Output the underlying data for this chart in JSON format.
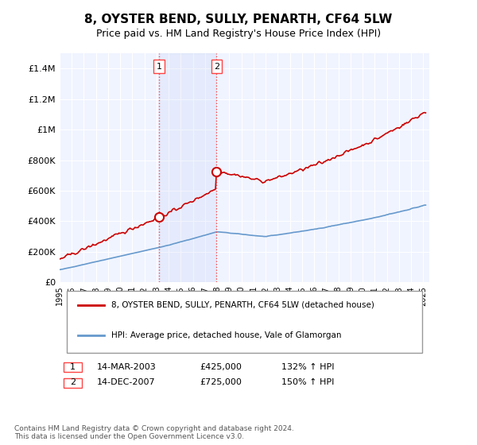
{
  "title": "8, OYSTER BEND, SULLY, PENARTH, CF64 5LW",
  "subtitle": "Price paid vs. HM Land Registry's House Price Index (HPI)",
  "title_fontsize": 11,
  "subtitle_fontsize": 9,
  "ylabel": "",
  "xlabel": "",
  "ylim": [
    0,
    1500000
  ],
  "xlim_start": 1995.0,
  "xlim_end": 2025.5,
  "background_color": "#ffffff",
  "plot_bg_color": "#f0f4ff",
  "grid_color": "#ffffff",
  "sale1_year": 2003.2,
  "sale1_price": 425000,
  "sale2_year": 2007.95,
  "sale2_price": 725000,
  "sale1_label": "1",
  "sale2_label": "2",
  "vline_color": "#ff4444",
  "vline_style": ":",
  "red_line_color": "#cc0000",
  "blue_line_color": "#6699cc",
  "legend_label_red": "8, OYSTER BEND, SULLY, PENARTH, CF64 5LW (detached house)",
  "legend_label_blue": "HPI: Average price, detached house, Vale of Glamorgan",
  "table_row1": [
    "1",
    "14-MAR-2003",
    "£425,000",
    "132% ↑ HPI"
  ],
  "table_row2": [
    "2",
    "14-DEC-2007",
    "£725,000",
    "150% ↑ HPI"
  ],
  "footer": "Contains HM Land Registry data © Crown copyright and database right 2024.\nThis data is licensed under the Open Government Licence v3.0.",
  "yticks": [
    0,
    200000,
    400000,
    600000,
    800000,
    1000000,
    1200000,
    1400000
  ],
  "ytick_labels": [
    "£0",
    "£200K",
    "£400K",
    "£600K",
    "£800K",
    "£1M",
    "£1.2M",
    "£1.4M"
  ]
}
